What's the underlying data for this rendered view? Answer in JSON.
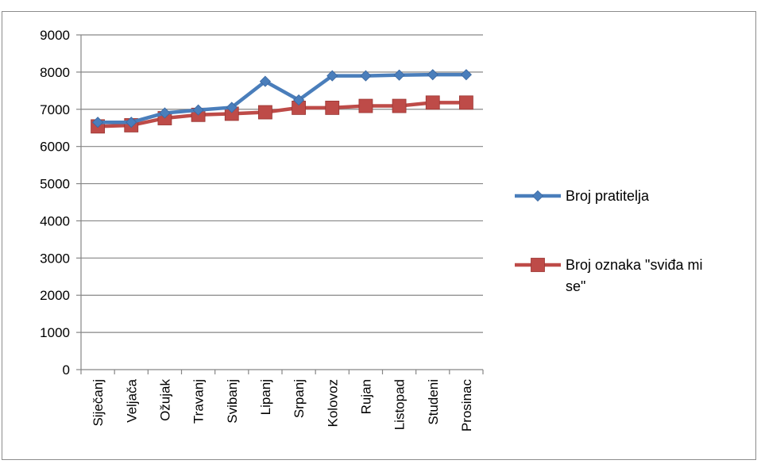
{
  "chart_data": {
    "type": "line",
    "title": "",
    "xlabel": "",
    "ylabel": "",
    "ylim": [
      0,
      9000
    ],
    "yticks": [
      0,
      1000,
      2000,
      3000,
      4000,
      5000,
      6000,
      7000,
      8000,
      9000
    ],
    "grid": "horizontal",
    "legend_position": "right",
    "categories": [
      "Siječanj",
      "Veljača",
      "Ožujak",
      "Travanj",
      "Svibanj",
      "Lipanj",
      "Srpanj",
      "Kolovoz",
      "Rujan",
      "Listopad",
      "Studeni",
      "Prosinac"
    ],
    "series": [
      {
        "name": "Broj pratitelja",
        "color": "#4a7ebb",
        "marker": "diamond",
        "values": [
          6650,
          6650,
          6900,
          6980,
          7050,
          7750,
          7250,
          7900,
          7900,
          7920,
          7930,
          7930
        ]
      },
      {
        "name": "Broj oznaka \"sviđa mi se\"",
        "legend_lines": [
          "Broj oznaka \"sviđa mi",
          "se\""
        ],
        "color": "#be4b48",
        "marker": "square",
        "values": [
          6540,
          6570,
          6760,
          6850,
          6880,
          6920,
          7040,
          7040,
          7090,
          7090,
          7180,
          7180
        ]
      }
    ]
  }
}
